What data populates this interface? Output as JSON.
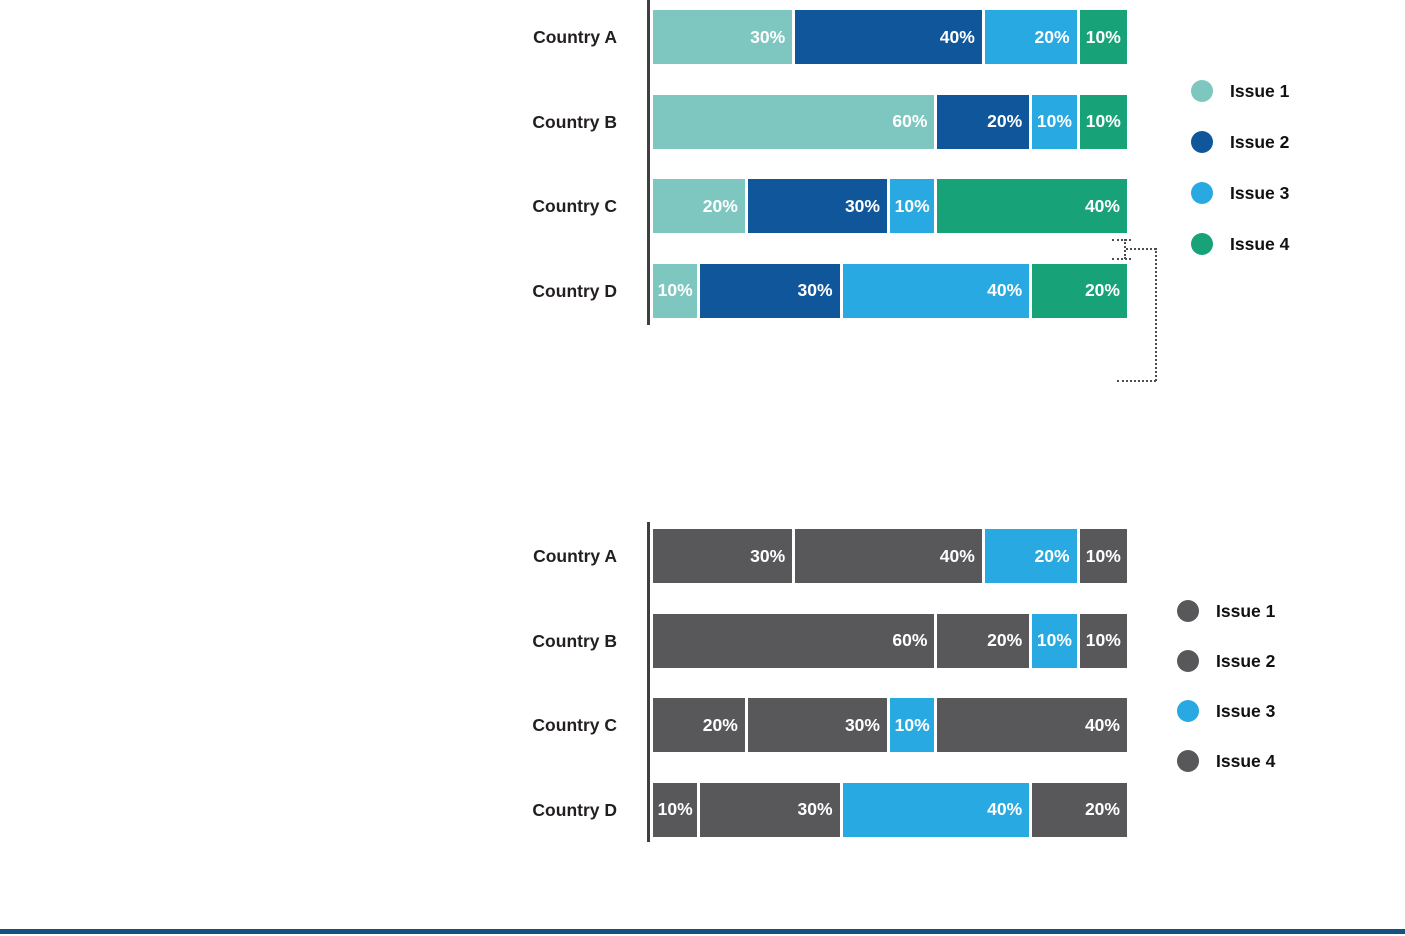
{
  "chart_data": [
    {
      "type": "bar",
      "orientation": "horizontal",
      "stacked": true,
      "unit": "%",
      "xlim": [
        0,
        100
      ],
      "grid": false,
      "legend_position": "right",
      "categories": [
        "Country A",
        "Country B",
        "Country C",
        "Country D"
      ],
      "series": [
        {
          "name": "Issue 1",
          "color": "#7EC7C0",
          "values": [
            30,
            60,
            20,
            10
          ]
        },
        {
          "name": "Issue 2",
          "color": "#10569A",
          "values": [
            40,
            20,
            30,
            30
          ]
        },
        {
          "name": "Issue 3",
          "color": "#29A9E1",
          "values": [
            20,
            10,
            10,
            40
          ]
        },
        {
          "name": "Issue 4",
          "color": "#17A377",
          "values": [
            10,
            10,
            40,
            20
          ]
        }
      ],
      "legend": [
        {
          "label": "Issue 1",
          "color": "#7EC7C0"
        },
        {
          "label": "Issue 2",
          "color": "#10569A"
        },
        {
          "label": "Issue 3",
          "color": "#29A9E1"
        },
        {
          "label": "Issue 4",
          "color": "#17A377"
        }
      ]
    },
    {
      "type": "bar",
      "orientation": "horizontal",
      "stacked": true,
      "unit": "%",
      "xlim": [
        0,
        100
      ],
      "grid": false,
      "legend_position": "right",
      "categories": [
        "Country A",
        "Country B",
        "Country C",
        "Country D"
      ],
      "series": [
        {
          "name": "Issue 1",
          "color": "#58585A",
          "values": [
            30,
            60,
            20,
            10
          ]
        },
        {
          "name": "Issue 2",
          "color": "#58585A",
          "values": [
            40,
            20,
            30,
            30
          ]
        },
        {
          "name": "Issue 3",
          "color": "#29A9E1",
          "values": [
            20,
            10,
            10,
            40
          ]
        },
        {
          "name": "Issue 4",
          "color": "#58585A",
          "values": [
            10,
            10,
            40,
            20
          ]
        }
      ],
      "legend": [
        {
          "label": "Issue 1",
          "color": "#58585A"
        },
        {
          "label": "Issue 2",
          "color": "#58585A"
        },
        {
          "label": "Issue 3",
          "color": "#29A9E1"
        },
        {
          "label": "Issue 4",
          "color": "#58585A"
        }
      ]
    }
  ],
  "annotation": {
    "style": "dotted-bracket",
    "color": "#4D4D4D"
  },
  "footer_rule_color": "#15517F",
  "value_label_color": "#FFFFFF",
  "category_label_color": "#231F20",
  "axis_color": "#3F3F41"
}
